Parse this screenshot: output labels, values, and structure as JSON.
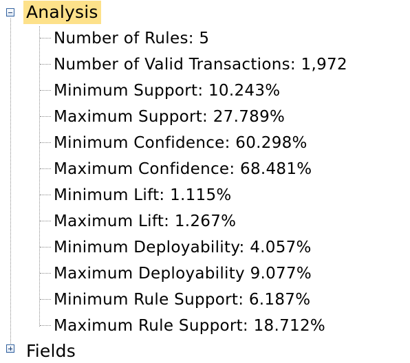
{
  "tree": {
    "root": {
      "label": "Analysis",
      "expanded": true,
      "children": [
        "Number of Rules: 5",
        "Number of Valid Transactions: 1,972",
        "Minimum Support: 10.243%",
        "Maximum Support: 27.789%",
        "Minimum Confidence: 60.298%",
        "Maximum Confidence: 68.481%",
        "Minimum Lift: 1.115%",
        "Maximum Lift: 1.267%",
        "Minimum Deployability: 4.057%",
        "Maximum Deployability 9.077%",
        "Minimum Rule Support: 6.187%",
        "Maximum Rule Support: 18.712%"
      ]
    },
    "second_root": {
      "label": "Fields",
      "expanded": false
    }
  },
  "colors": {
    "selection": "#fde18a",
    "expander_border": "#2f5f9e",
    "guide_line": "#8a8a8a"
  }
}
